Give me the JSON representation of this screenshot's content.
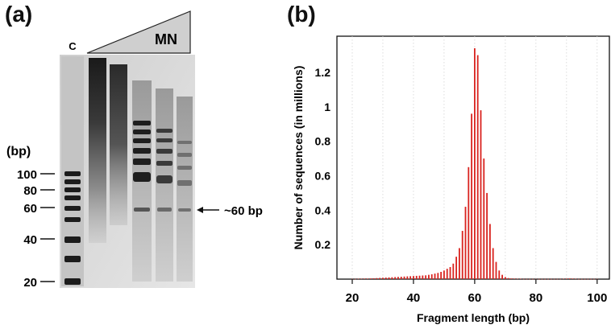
{
  "panel_a": {
    "label": "(a)",
    "lane_c_label": "C",
    "wedge_label": "MN",
    "bp_unit_label": "(bp)",
    "ladder_labels": [
      "100",
      "80",
      "60",
      "40",
      "20"
    ],
    "ladder_values_bp": [
      100,
      80,
      60,
      40,
      20
    ],
    "arrow_annotation": "~60 bp"
  },
  "panel_b": {
    "label": "(b)"
  },
  "chart_data": {
    "type": "bar",
    "xlabel": "Fragment length (bp)",
    "ylabel": "Number of sequences (in millions)",
    "xlim": [
      15,
      104
    ],
    "ylim": [
      0,
      1.41
    ],
    "x_ticks": [
      20,
      40,
      60,
      80,
      100
    ],
    "x_tick_labels": [
      "20",
      "40",
      "60",
      "80",
      "100"
    ],
    "y_ticks": [
      0.2,
      0.4,
      0.6,
      0.8,
      1.0,
      1.2
    ],
    "y_tick_labels": [
      "0.2",
      "0.4",
      "0.6",
      "0.8",
      "1",
      "1.2"
    ],
    "grid": "vertical dotted",
    "bar_color": "#d9231f",
    "series": [
      {
        "x": [
          20,
          21,
          22,
          23,
          24,
          25,
          26,
          27,
          28,
          29,
          30,
          31,
          32,
          33,
          34,
          35,
          36,
          37,
          38,
          39,
          40,
          41,
          42,
          43,
          44,
          45,
          46,
          47,
          48,
          49,
          50,
          51,
          52,
          53,
          54,
          55,
          56,
          57,
          58,
          59,
          60,
          61,
          62,
          63,
          64,
          65,
          66,
          67,
          68,
          69,
          70,
          71,
          72,
          73,
          74,
          75,
          76,
          77,
          78,
          79,
          80,
          81,
          82,
          83,
          84,
          85,
          86,
          87,
          88,
          89,
          90,
          91,
          92,
          93,
          94,
          95,
          96,
          97,
          98,
          99,
          100
        ],
        "values": [
          0.001,
          0.001,
          0.002,
          0.002,
          0.003,
          0.003,
          0.004,
          0.005,
          0.006,
          0.007,
          0.008,
          0.009,
          0.01,
          0.011,
          0.012,
          0.013,
          0.014,
          0.015,
          0.016,
          0.017,
          0.018,
          0.019,
          0.02,
          0.021,
          0.022,
          0.025,
          0.028,
          0.032,
          0.036,
          0.042,
          0.05,
          0.06,
          0.07,
          0.09,
          0.13,
          0.18,
          0.28,
          0.42,
          0.65,
          0.96,
          1.34,
          1.3,
          0.98,
          0.7,
          0.5,
          0.32,
          0.18,
          0.1,
          0.05,
          0.025,
          0.012,
          0.006,
          0.004,
          0.003,
          0.002,
          0.002,
          0.001,
          0.001,
          0.001,
          0.001,
          0.001,
          0.001,
          0.001,
          0.001,
          0.001,
          0.001,
          0.001,
          0.001,
          0.001,
          0.002,
          0.003,
          0.004,
          0.003,
          0.002,
          0.001,
          0.001,
          0.001,
          0.001,
          0.001,
          0.001,
          0.001
        ]
      }
    ]
  }
}
